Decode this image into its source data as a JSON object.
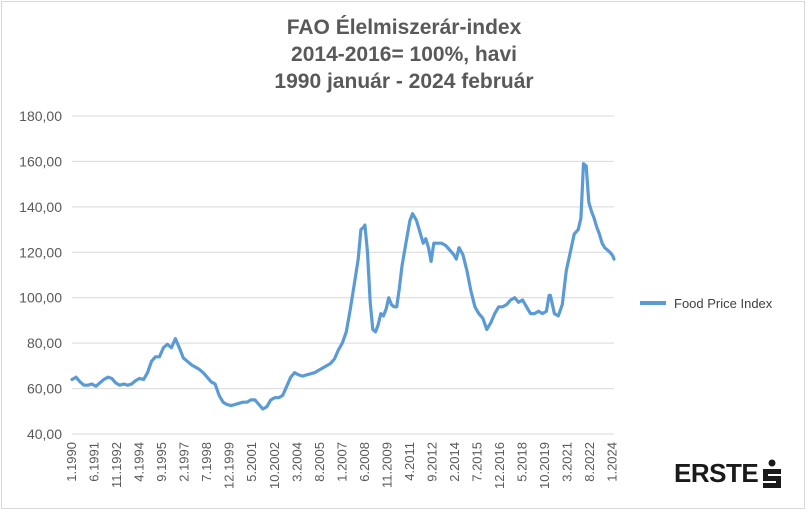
{
  "chart_data": {
    "type": "line",
    "title_lines": [
      "FAO Élelmiszerár-index",
      "2014-2016= 100%, havi",
      "1990 január - 2024 február"
    ],
    "ylim": [
      40,
      180
    ],
    "yticks": [
      40,
      60,
      80,
      100,
      120,
      140,
      160,
      180
    ],
    "ytick_labels": [
      "40,00",
      "60,00",
      "80,00",
      "100,00",
      "120,00",
      "140,00",
      "160,00",
      "180,00"
    ],
    "xticks": [
      {
        "label": "1.1990",
        "year": 1990,
        "month": 1
      },
      {
        "label": "6.1991",
        "year": 1991,
        "month": 6
      },
      {
        "label": "11.1992",
        "year": 1992,
        "month": 11
      },
      {
        "label": "4.1994",
        "year": 1994,
        "month": 4
      },
      {
        "label": "9.1995",
        "year": 1995,
        "month": 9
      },
      {
        "label": "2.1997",
        "year": 1997,
        "month": 2
      },
      {
        "label": "7.1998",
        "year": 1998,
        "month": 7
      },
      {
        "label": "12.1999",
        "year": 1999,
        "month": 12
      },
      {
        "label": "5.2001",
        "year": 2001,
        "month": 5
      },
      {
        "label": "10.2002",
        "year": 2002,
        "month": 10
      },
      {
        "label": "3.2004",
        "year": 2004,
        "month": 3
      },
      {
        "label": "8.2005",
        "year": 2005,
        "month": 8
      },
      {
        "label": "1.2007",
        "year": 2007,
        "month": 1
      },
      {
        "label": "6.2008",
        "year": 2008,
        "month": 6
      },
      {
        "label": "11.2009",
        "year": 2009,
        "month": 11
      },
      {
        "label": "4.2011",
        "year": 2011,
        "month": 4
      },
      {
        "label": "9.2012",
        "year": 2012,
        "month": 9
      },
      {
        "label": "2.2014",
        "year": 2014,
        "month": 2
      },
      {
        "label": "7.2015",
        "year": 2015,
        "month": 7
      },
      {
        "label": "12.2016",
        "year": 2016,
        "month": 12
      },
      {
        "label": "5.2018",
        "year": 2018,
        "month": 5
      },
      {
        "label": "10.2019",
        "year": 2019,
        "month": 10
      },
      {
        "label": "3.2021",
        "year": 2021,
        "month": 3
      },
      {
        "label": "8.2022",
        "year": 2022,
        "month": 8
      },
      {
        "label": "1.2024",
        "year": 2024,
        "month": 1
      }
    ],
    "x_range": [
      "1990-01",
      "2024-02"
    ],
    "grid": "horizontal",
    "legend_position": "right",
    "series": [
      {
        "name": "Food Price Index",
        "color": "#5b9bd5",
        "points": [
          [
            "1990-01",
            64
          ],
          [
            "1990-04",
            65
          ],
          [
            "1990-07",
            63
          ],
          [
            "1990-10",
            61.5
          ],
          [
            "1991-01",
            61.5
          ],
          [
            "1991-04",
            62
          ],
          [
            "1991-07",
            61
          ],
          [
            "1991-10",
            62.5
          ],
          [
            "1992-01",
            64
          ],
          [
            "1992-04",
            65
          ],
          [
            "1992-07",
            64.5
          ],
          [
            "1992-10",
            62.5
          ],
          [
            "1993-01",
            61.5
          ],
          [
            "1993-04",
            62
          ],
          [
            "1993-07",
            61.5
          ],
          [
            "1993-10",
            62
          ],
          [
            "1994-01",
            63.5
          ],
          [
            "1994-04",
            64.5
          ],
          [
            "1994-07",
            64
          ],
          [
            "1994-10",
            67
          ],
          [
            "1995-01",
            72
          ],
          [
            "1995-04",
            74
          ],
          [
            "1995-07",
            74
          ],
          [
            "1995-10",
            78
          ],
          [
            "1996-01",
            79.5
          ],
          [
            "1996-04",
            78
          ],
          [
            "1996-07",
            82
          ],
          [
            "1996-10",
            78
          ],
          [
            "1997-01",
            73.5
          ],
          [
            "1997-04",
            72
          ],
          [
            "1997-07",
            70.5
          ],
          [
            "1997-10",
            69.5
          ],
          [
            "1998-01",
            68.5
          ],
          [
            "1998-04",
            67
          ],
          [
            "1998-07",
            65
          ],
          [
            "1998-10",
            63
          ],
          [
            "1999-01",
            62
          ],
          [
            "1999-04",
            57
          ],
          [
            "1999-07",
            54
          ],
          [
            "1999-10",
            53
          ],
          [
            "2000-01",
            52.5
          ],
          [
            "2000-04",
            53
          ],
          [
            "2000-07",
            53.5
          ],
          [
            "2000-10",
            54
          ],
          [
            "2001-01",
            54
          ],
          [
            "2001-04",
            55
          ],
          [
            "2001-07",
            55
          ],
          [
            "2001-10",
            53
          ],
          [
            "2002-01",
            51
          ],
          [
            "2002-04",
            52
          ],
          [
            "2002-07",
            55
          ],
          [
            "2002-10",
            56
          ],
          [
            "2003-01",
            56
          ],
          [
            "2003-04",
            57
          ],
          [
            "2003-07",
            61
          ],
          [
            "2003-10",
            65
          ],
          [
            "2004-01",
            67
          ],
          [
            "2004-04",
            66
          ],
          [
            "2004-07",
            65.5
          ],
          [
            "2004-10",
            66
          ],
          [
            "2005-01",
            66.5
          ],
          [
            "2005-04",
            67
          ],
          [
            "2005-07",
            68
          ],
          [
            "2005-10",
            69
          ],
          [
            "2006-01",
            70
          ],
          [
            "2006-04",
            71
          ],
          [
            "2006-07",
            73
          ],
          [
            "2006-10",
            77
          ],
          [
            "2007-01",
            80
          ],
          [
            "2007-04",
            85
          ],
          [
            "2007-07",
            95
          ],
          [
            "2007-10",
            106
          ],
          [
            "2008-01",
            117
          ],
          [
            "2008-03",
            130
          ],
          [
            "2008-05",
            131
          ],
          [
            "2008-06",
            132
          ],
          [
            "2008-08",
            120
          ],
          [
            "2008-10",
            98
          ],
          [
            "2008-12",
            86
          ],
          [
            "2009-02",
            85
          ],
          [
            "2009-04",
            88
          ],
          [
            "2009-06",
            93
          ],
          [
            "2009-08",
            92
          ],
          [
            "2009-10",
            95
          ],
          [
            "2009-12",
            100
          ],
          [
            "2010-02",
            97
          ],
          [
            "2010-04",
            96
          ],
          [
            "2010-06",
            96
          ],
          [
            "2010-08",
            104
          ],
          [
            "2010-10",
            114
          ],
          [
            "2011-01",
            124
          ],
          [
            "2011-04",
            134
          ],
          [
            "2011-06",
            137
          ],
          [
            "2011-09",
            134
          ],
          [
            "2011-12",
            128
          ],
          [
            "2012-02",
            124
          ],
          [
            "2012-04",
            126
          ],
          [
            "2012-06",
            122
          ],
          [
            "2012-08",
            116
          ],
          [
            "2012-10",
            124
          ],
          [
            "2013-01",
            124
          ],
          [
            "2013-04",
            124
          ],
          [
            "2013-07",
            123
          ],
          [
            "2013-10",
            121
          ],
          [
            "2014-01",
            119
          ],
          [
            "2014-03",
            117
          ],
          [
            "2014-05",
            122
          ],
          [
            "2014-08",
            119
          ],
          [
            "2014-11",
            112
          ],
          [
            "2015-02",
            103
          ],
          [
            "2015-05",
            96
          ],
          [
            "2015-08",
            93
          ],
          [
            "2015-11",
            91
          ],
          [
            "2016-02",
            86
          ],
          [
            "2016-05",
            89
          ],
          [
            "2016-08",
            93
          ],
          [
            "2016-11",
            96
          ],
          [
            "2017-02",
            96
          ],
          [
            "2017-05",
            97
          ],
          [
            "2017-08",
            99
          ],
          [
            "2017-11",
            100
          ],
          [
            "2018-02",
            98
          ],
          [
            "2018-05",
            99
          ],
          [
            "2018-08",
            96
          ],
          [
            "2018-11",
            93
          ],
          [
            "2019-02",
            93
          ],
          [
            "2019-05",
            94
          ],
          [
            "2019-08",
            93
          ],
          [
            "2019-11",
            94
          ],
          [
            "2020-01",
            101
          ],
          [
            "2020-02",
            101
          ],
          [
            "2020-05",
            93
          ],
          [
            "2020-08",
            92
          ],
          [
            "2020-11",
            97
          ],
          [
            "2021-02",
            112
          ],
          [
            "2021-05",
            120
          ],
          [
            "2021-08",
            128
          ],
          [
            "2021-11",
            130
          ],
          [
            "2022-01",
            135
          ],
          [
            "2022-03",
            159
          ],
          [
            "2022-05",
            158
          ],
          [
            "2022-07",
            142
          ],
          [
            "2022-09",
            138
          ],
          [
            "2022-11",
            135
          ],
          [
            "2023-01",
            131
          ],
          [
            "2023-03",
            128
          ],
          [
            "2023-05",
            124
          ],
          [
            "2023-07",
            122
          ],
          [
            "2023-09",
            121
          ],
          [
            "2023-11",
            120
          ],
          [
            "2024-01",
            118.5
          ],
          [
            "2024-02",
            117
          ]
        ]
      }
    ]
  },
  "logo": {
    "text": "ERSTE",
    "icon": "erste-s-icon",
    "color": "#1a1a1a"
  }
}
